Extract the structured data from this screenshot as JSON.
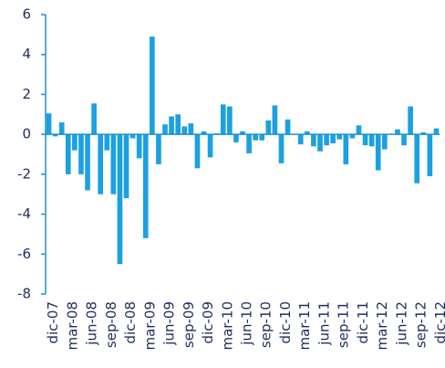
{
  "chart_data": {
    "type": "bar",
    "categories": [
      "dic-07",
      null,
      null,
      "mar-08",
      null,
      null,
      "jun-08",
      null,
      null,
      "sep-08",
      null,
      null,
      "dic-08",
      null,
      null,
      "mar-09",
      null,
      null,
      "jun-09",
      null,
      null,
      "sep-09",
      null,
      null,
      "dic-09",
      null,
      null,
      "mar-10",
      null,
      null,
      "jun-10",
      null,
      null,
      "sep-10",
      null,
      null,
      "dic-10",
      null,
      null,
      "mar-11",
      null,
      null,
      "jun-11",
      null,
      null,
      "sep-11",
      null,
      null,
      "dic-11",
      null,
      null,
      "mar-12",
      null,
      null,
      "jun-12",
      null,
      null,
      "sep-12",
      null,
      null,
      "dic-12"
    ],
    "values": [
      1.05,
      -0.1,
      0.6,
      -2.0,
      -0.8,
      -2.0,
      -2.8,
      1.55,
      -3.0,
      -0.8,
      -3.0,
      -6.5,
      -3.2,
      -0.2,
      -1.2,
      -5.2,
      4.9,
      -1.5,
      0.5,
      0.9,
      1.0,
      0.4,
      0.55,
      -1.7,
      0.15,
      -1.15,
      0.05,
      1.5,
      1.4,
      -0.4,
      0.15,
      -0.95,
      -0.3,
      -0.3,
      0.7,
      1.45,
      -1.45,
      0.75,
      0.0,
      -0.5,
      0.15,
      -0.6,
      -0.85,
      -0.55,
      -0.45,
      -0.25,
      -1.5,
      -0.2,
      0.45,
      -0.55,
      -0.6,
      -1.8,
      -0.75,
      0.0,
      0.25,
      -0.55,
      1.4,
      -2.45,
      0.1,
      -2.1,
      0.3
    ],
    "color": "#1ba1e2",
    "axis_color": "#1f8fd0",
    "ylim": [
      -8,
      6
    ],
    "yticks": [
      -8,
      -6,
      -4,
      -2,
      0,
      2,
      4,
      6
    ]
  }
}
